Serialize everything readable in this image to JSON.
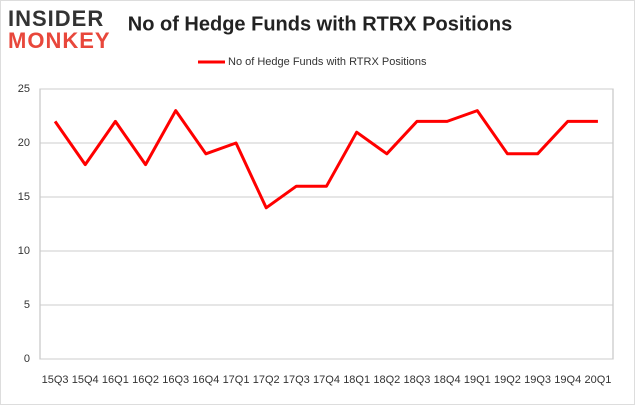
{
  "logo": [
    "INSIDER",
    "MONKEY"
  ],
  "chart_data": {
    "type": "line",
    "title": "No of Hedge Funds with RTRX Positions",
    "categories": [
      "15Q3",
      "15Q4",
      "16Q1",
      "16Q2",
      "16Q3",
      "16Q4",
      "17Q1",
      "17Q2",
      "17Q3",
      "17Q4",
      "18Q1",
      "18Q2",
      "18Q3",
      "18Q4",
      "19Q1",
      "19Q2",
      "19Q3",
      "19Q4",
      "20Q1"
    ],
    "series": [
      {
        "name": "No of Hedge Funds with RTRX Positions",
        "color": "#ff0000",
        "values": [
          22,
          18,
          22,
          18,
          23,
          19,
          20,
          14,
          16,
          16,
          21,
          19,
          22,
          22,
          23,
          19,
          19,
          22,
          22
        ]
      }
    ],
    "ylim": [
      0,
      25
    ],
    "yticks": [
      0,
      5,
      10,
      15,
      20,
      25
    ],
    "grid": true,
    "legend": "top"
  }
}
